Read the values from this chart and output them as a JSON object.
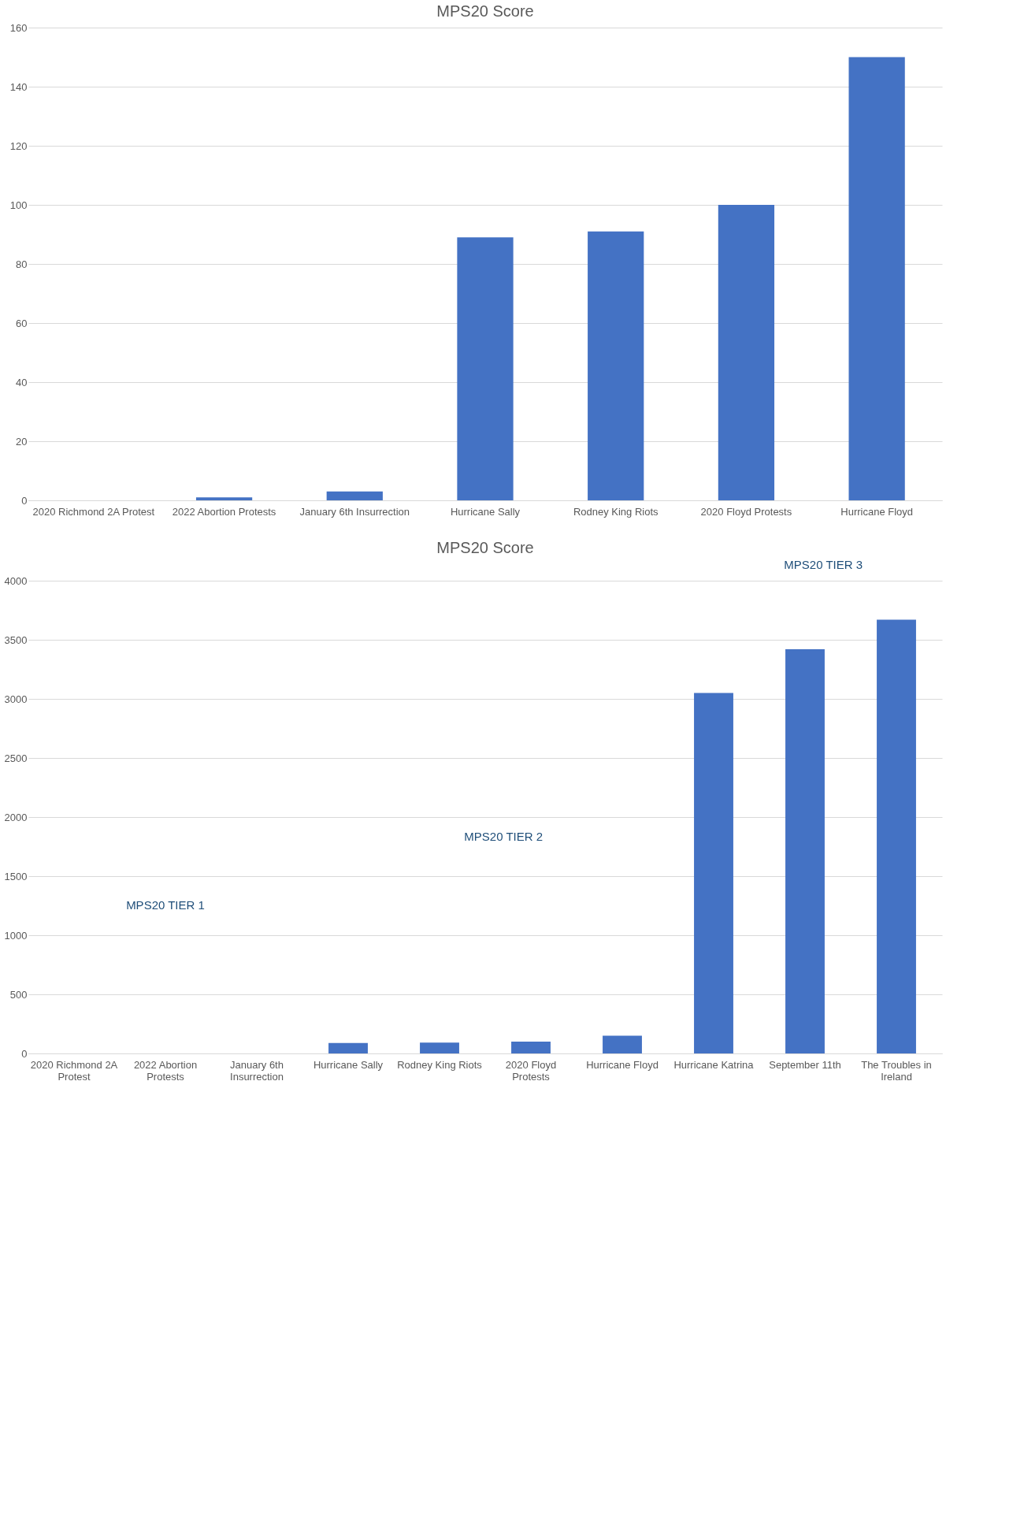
{
  "chart_data": [
    {
      "type": "bar",
      "title": "MPS20 Score",
      "categories": [
        "2020 Richmond 2A Protest",
        "2022 Abortion Protests",
        "January 6th Insurrection",
        "Hurricane Sally",
        "Rodney King Riots",
        "2020 Floyd Protests",
        "Hurricane Floyd"
      ],
      "values": [
        0,
        1,
        3,
        89,
        91,
        100,
        150
      ],
      "color": "#4472c4",
      "ylim": [
        0,
        160
      ],
      "yticks": [
        0,
        20,
        40,
        60,
        80,
        100,
        120,
        140,
        160
      ],
      "grid": "y"
    },
    {
      "type": "bar",
      "title": "MPS20 Score",
      "categories": [
        "2020 Richmond 2A Protest",
        "2022 Abortion Protests",
        "January 6th Insurrection",
        "Hurricane Sally",
        "Rodney King Riots",
        "2020 Floyd Protests",
        "Hurricane Floyd",
        "Hurricane Katrina",
        "September 11th",
        "The Troubles in Ireland"
      ],
      "values": [
        0,
        null,
        null,
        89,
        91,
        100,
        150,
        3050,
        3420,
        3670
      ],
      "color": "#4472c4",
      "ylim": [
        0,
        4000
      ],
      "yticks": [
        0,
        500,
        1000,
        1500,
        2000,
        2500,
        3000,
        3500,
        4000
      ],
      "grid": "y",
      "annotations": [
        "MPS20 TIER 1",
        "MPS20 TIER 2",
        "MPS20 TIER 3"
      ]
    }
  ]
}
